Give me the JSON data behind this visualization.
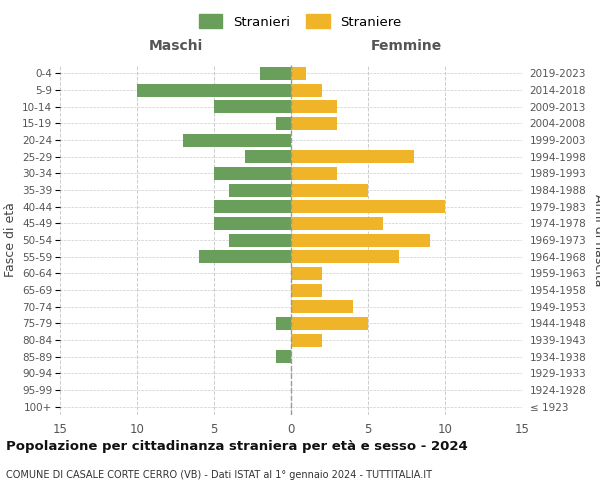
{
  "age_groups": [
    "100+",
    "95-99",
    "90-94",
    "85-89",
    "80-84",
    "75-79",
    "70-74",
    "65-69",
    "60-64",
    "55-59",
    "50-54",
    "45-49",
    "40-44",
    "35-39",
    "30-34",
    "25-29",
    "20-24",
    "15-19",
    "10-14",
    "5-9",
    "0-4"
  ],
  "birth_years": [
    "≤ 1923",
    "1924-1928",
    "1929-1933",
    "1934-1938",
    "1939-1943",
    "1944-1948",
    "1949-1953",
    "1954-1958",
    "1959-1963",
    "1964-1968",
    "1969-1973",
    "1974-1978",
    "1979-1983",
    "1984-1988",
    "1989-1993",
    "1994-1998",
    "1999-2003",
    "2004-2008",
    "2009-2013",
    "2014-2018",
    "2019-2023"
  ],
  "males": [
    0,
    0,
    0,
    1,
    0,
    1,
    0,
    0,
    0,
    6,
    4,
    5,
    5,
    4,
    5,
    3,
    7,
    1,
    5,
    10,
    2
  ],
  "females": [
    0,
    0,
    0,
    0,
    2,
    5,
    4,
    2,
    2,
    7,
    9,
    6,
    10,
    5,
    3,
    8,
    0,
    3,
    3,
    2,
    1
  ],
  "male_color": "#6a9e5b",
  "female_color": "#f0b429",
  "title": "Popolazione per cittadinanza straniera per età e sesso - 2024",
  "subtitle": "COMUNE DI CASALE CORTE CERRO (VB) - Dati ISTAT al 1° gennaio 2024 - TUTTITALIA.IT",
  "ylabel_left": "Fasce di età",
  "ylabel_right": "Anni di nascita",
  "label_maschi": "Maschi",
  "label_femmine": "Femmine",
  "legend_male": "Stranieri",
  "legend_female": "Straniere",
  "xlim": 15,
  "background_color": "#ffffff",
  "grid_color": "#cccccc",
  "xticks": [
    -15,
    -10,
    -5,
    0,
    5,
    10,
    15
  ]
}
